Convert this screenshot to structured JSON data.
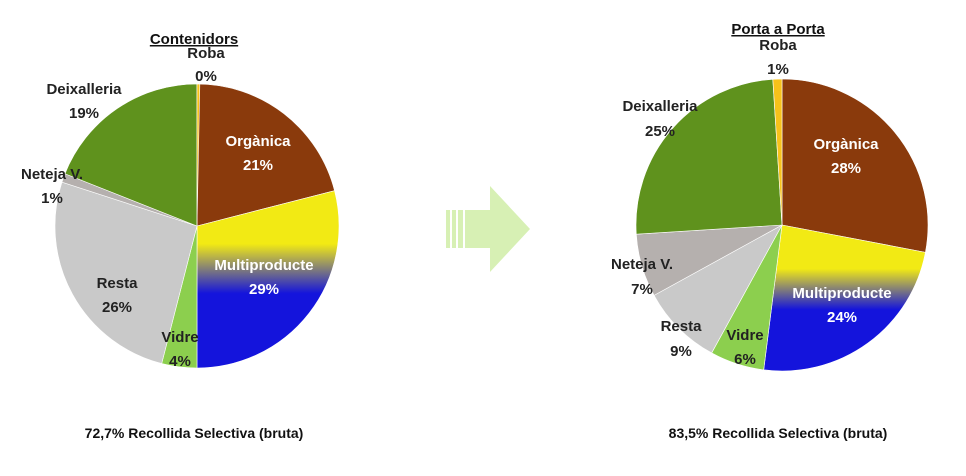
{
  "colors": {
    "organica": "#8a3a0c",
    "multiproducte_top": "#f2ea14",
    "multiproducte_bottom": "#1414dc",
    "vidre": "#8ccf4e",
    "resta": "#c9c9c9",
    "neteja": "#b5b0ae",
    "deixalleria": "#5f921d",
    "roba": "#f7c21a",
    "arrow": "#d7f0b4"
  },
  "chart_data": [
    {
      "type": "pie",
      "title": "Contenidors",
      "slices": [
        {
          "label": "Orgànica",
          "value": 21,
          "value_label": "21%",
          "color_key": "organica"
        },
        {
          "label": "Multiproducte",
          "value": 29,
          "value_label": "29%",
          "color_key": "multiproducte"
        },
        {
          "label": "Vidre",
          "value": 4,
          "value_label": "4%",
          "color_key": "vidre"
        },
        {
          "label": "Resta",
          "value": 26,
          "value_label": "26%",
          "color_key": "resta"
        },
        {
          "label": "Neteja V.",
          "value": 1,
          "value_label": "1%",
          "color_key": "neteja"
        },
        {
          "label": "Deixalleria",
          "value": 19,
          "value_label": "19%",
          "color_key": "deixalleria"
        },
        {
          "label": "Roba",
          "value": 0,
          "value_label": "0%",
          "color_key": "roba"
        }
      ],
      "footnote": "72,7% Recollida Selectiva (bruta)"
    },
    {
      "type": "pie",
      "title": "Porta a Porta",
      "slices": [
        {
          "label": "Orgànica",
          "value": 28,
          "value_label": "28%",
          "color_key": "organica"
        },
        {
          "label": "Multiproducte",
          "value": 24,
          "value_label": "24%",
          "color_key": "multiproducte"
        },
        {
          "label": "Vidre",
          "value": 6,
          "value_label": "6%",
          "color_key": "vidre"
        },
        {
          "label": "Resta",
          "value": 9,
          "value_label": "9%",
          "color_key": "resta"
        },
        {
          "label": "Neteja V.",
          "value": 7,
          "value_label": "7%",
          "color_key": "neteja"
        },
        {
          "label": "Deixalleria",
          "value": 25,
          "value_label": "25%",
          "color_key": "deixalleria"
        },
        {
          "label": "Roba",
          "value": 1,
          "value_label": "1%",
          "color_key": "roba"
        }
      ],
      "footnote": "83,5% Recollida Selectiva (bruta)"
    }
  ]
}
